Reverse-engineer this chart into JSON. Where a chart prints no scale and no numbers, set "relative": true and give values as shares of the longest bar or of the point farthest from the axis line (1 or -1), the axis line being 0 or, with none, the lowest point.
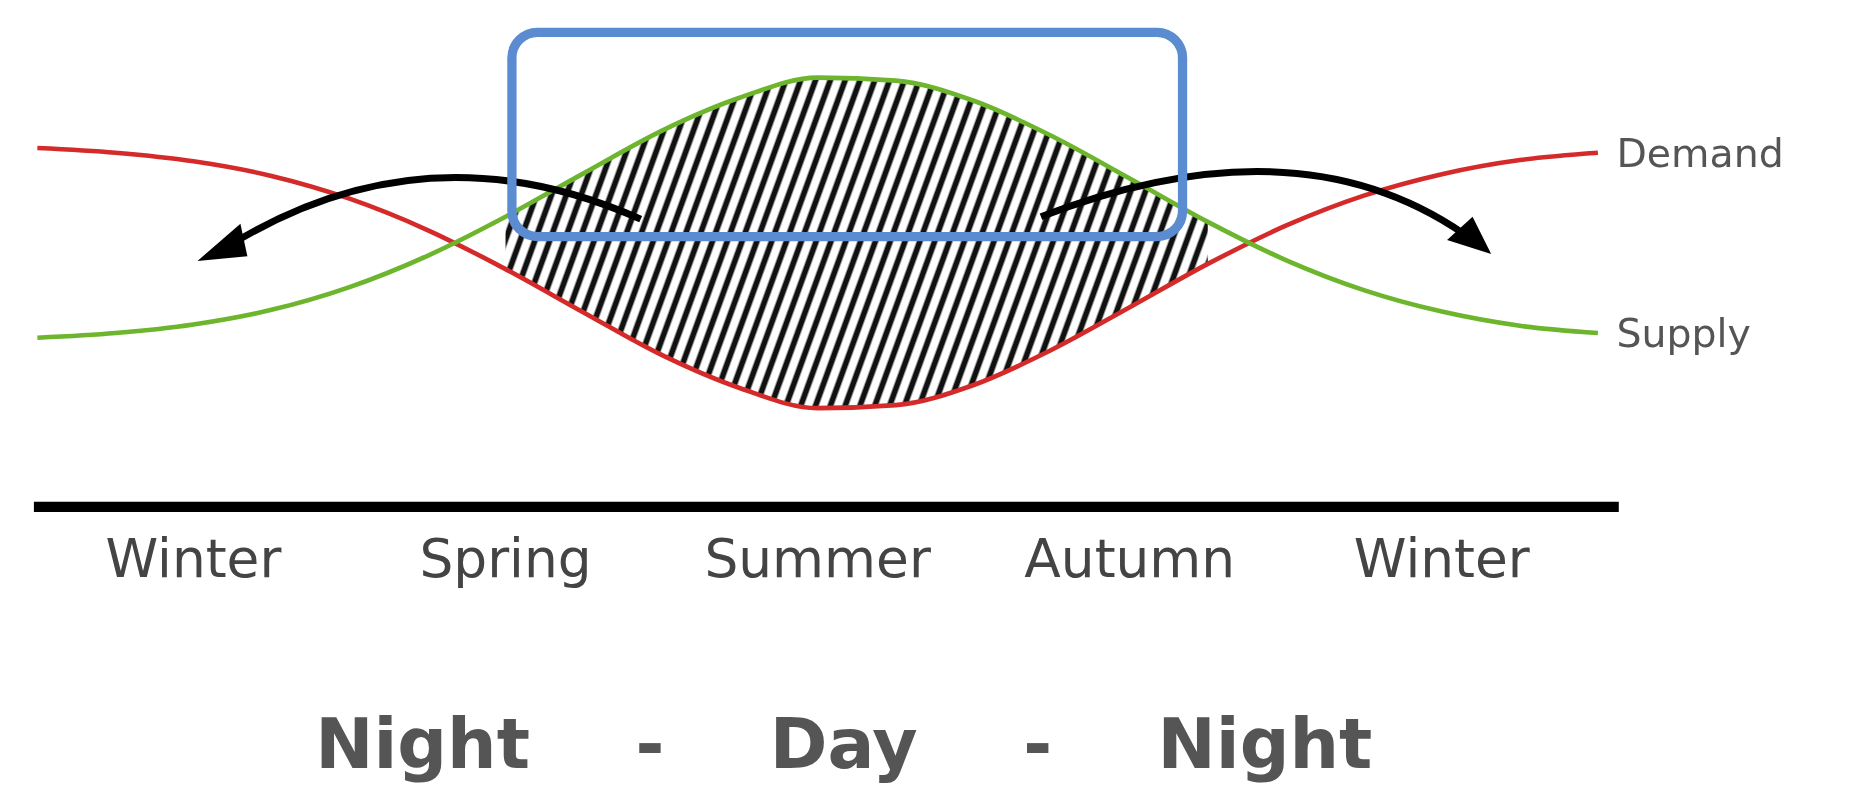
{
  "chart_data": {
    "type": "line",
    "relative": true,
    "categories": [
      null,
      null,
      "Winter",
      null,
      null,
      null,
      "Spring",
      null,
      null,
      null,
      "Summer",
      null,
      null,
      null,
      "Autumn",
      null,
      null,
      null,
      "Winter",
      null,
      null
    ],
    "series": [
      {
        "name": "Demand",
        "color": "#d42a2a",
        "values": [
          0.836,
          0.825,
          0.805,
          0.771,
          0.718,
          0.645,
          0.554,
          0.453,
          0.354,
          0.277,
          0.23,
          0.237,
          0.284,
          0.366,
          0.465,
          0.566,
          0.655,
          0.725,
          0.775,
          0.808,
          0.825
        ]
      },
      {
        "name": "Supply",
        "color": "#6cb52d",
        "values": [
          0.394,
          0.405,
          0.425,
          0.459,
          0.512,
          0.585,
          0.676,
          0.777,
          0.876,
          0.953,
          1.0,
          0.993,
          0.946,
          0.864,
          0.765,
          0.664,
          0.575,
          0.505,
          0.455,
          0.422,
          0.405
        ]
      }
    ],
    "annotations": [
      "Night - Day - Night"
    ]
  }
}
